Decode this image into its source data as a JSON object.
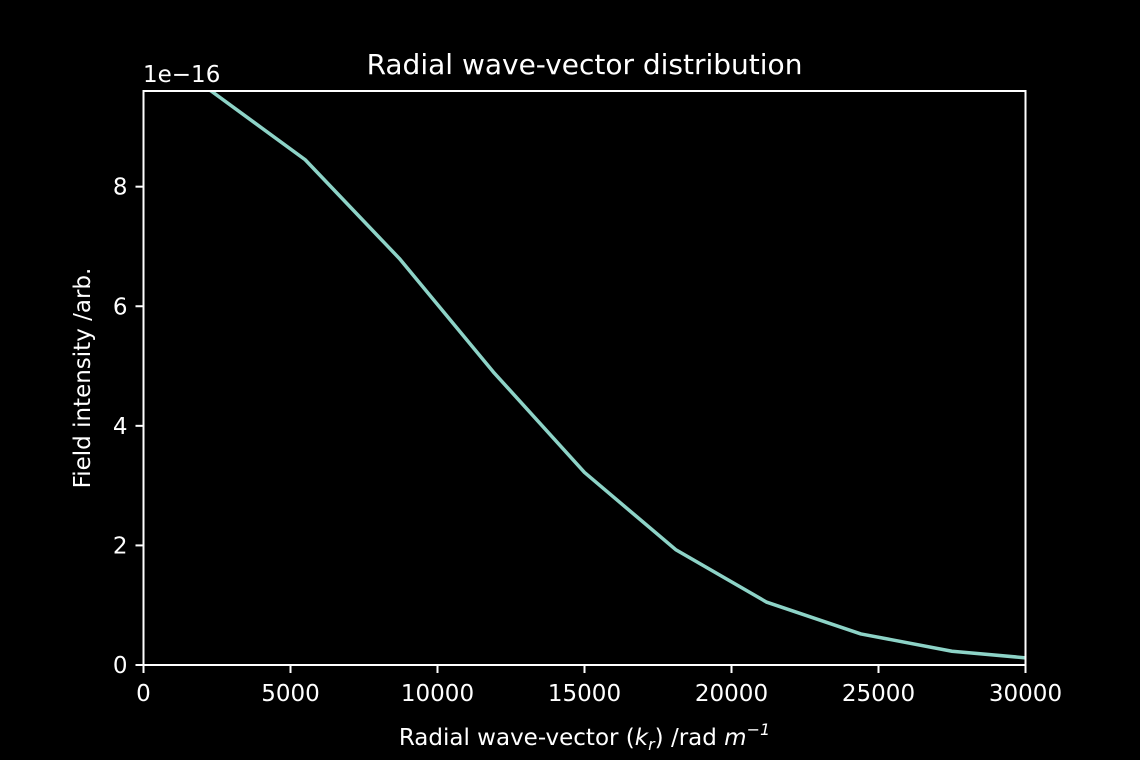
{
  "chart_data": {
    "type": "line",
    "title": "Radial wave-vector distribution",
    "xlabel_parts": {
      "prefix": "Radial wave-vector (",
      "k": "k",
      "k_sub": "r",
      "middle": ") /rad ",
      "m": "m",
      "m_sup": "−1"
    },
    "ylabel": "Field intensity /arb.",
    "y_offset_label": "1e−16",
    "xlim": [
      0,
      30000
    ],
    "ylim": [
      0,
      9.6
    ],
    "x_ticks": [
      0,
      5000,
      10000,
      15000,
      20000,
      25000,
      30000
    ],
    "x_tick_labels": [
      "0",
      "5000",
      "10000",
      "15000",
      "20000",
      "25000",
      "30000"
    ],
    "y_ticks": [
      0,
      2,
      4,
      6,
      8
    ],
    "y_tick_labels": [
      "0",
      "2",
      "4",
      "6",
      "8"
    ],
    "series": [
      {
        "x": [
          0,
          2300,
          5500,
          8700,
          11900,
          15000,
          18100,
          21200,
          24400,
          27500,
          30000
        ],
        "y": [
          10.2,
          9.6,
          8.45,
          6.8,
          4.9,
          3.22,
          1.93,
          1.05,
          0.52,
          0.23,
          0.12
        ]
      }
    ],
    "grid": false,
    "colors": {
      "background": "#000000",
      "axes": "#ffffff",
      "line": "#8dd3c7",
      "text": "#ffffff"
    }
  }
}
